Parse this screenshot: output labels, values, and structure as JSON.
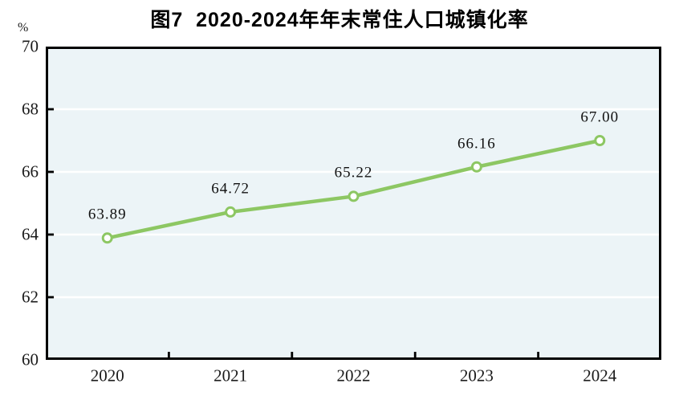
{
  "chart_data": {
    "type": "line",
    "title": "图7  2020-2024年年末常住人口城镇化率",
    "unit_label": "%",
    "categories": [
      "2020",
      "2021",
      "2022",
      "2023",
      "2024"
    ],
    "series": [
      {
        "name": "年末常住人口城镇化率",
        "values": [
          63.89,
          64.72,
          65.22,
          66.16,
          67.0
        ]
      }
    ],
    "data_labels": [
      "63.89",
      "64.72",
      "65.22",
      "66.16",
      "67.00"
    ],
    "y_ticks": [
      60,
      62,
      64,
      66,
      68,
      70
    ],
    "ylim": [
      60,
      70
    ],
    "grid": "horizontal white gridlines at interior y ticks",
    "legend": "none",
    "colors": {
      "line": "#8dc763",
      "marker_fill": "#ffffff",
      "marker_stroke": "#8dc763",
      "plot_background": "#ecf4f7",
      "gridline": "#ffffff",
      "axis": "#000000",
      "text": "#1a1a1a"
    }
  }
}
